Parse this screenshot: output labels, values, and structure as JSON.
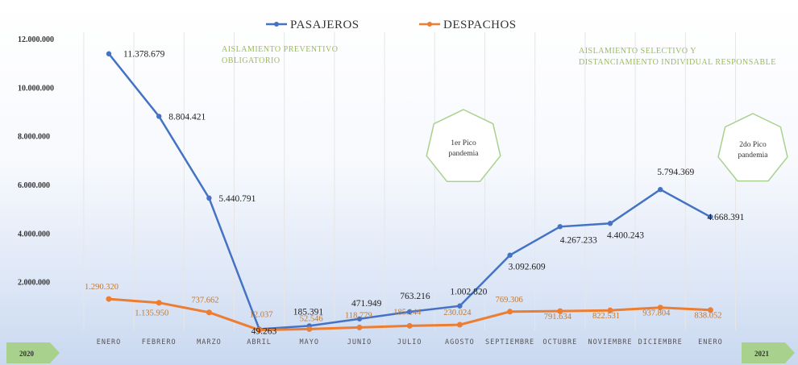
{
  "chart_data": {
    "type": "line",
    "categories": [
      "ENERO",
      "FEBRERO",
      "MARZO",
      "ABRIL",
      "MAYO",
      "JUNIO",
      "JULIO",
      "AGOSTO",
      "SEPTIEMBRE",
      "OCTUBRE",
      "NOVIEMBRE",
      "DICIEMBRE",
      "ENERO"
    ],
    "series": [
      {
        "name": "PASAJEROS",
        "color": "#4472c4",
        "values": [
          11378679,
          8804421,
          5440791,
          49263,
          185391,
          471949,
          763216,
          1002820,
          3092609,
          4267233,
          4400243,
          5794369,
          4668391
        ],
        "labels": [
          "11.378.679",
          "8.804.421",
          "5.440.791",
          "49.263",
          "185.391",
          "471.949",
          "763.216",
          "1.002.820",
          "3.092.609",
          "4.267.233",
          "4.400.243",
          "5.794.369",
          "4.668.391"
        ]
      },
      {
        "name": "DESPACHOS",
        "color": "#ed7d31",
        "values": [
          1290320,
          1135950,
          737662,
          12037,
          52546,
          118779,
          185144,
          230024,
          769306,
          791634,
          822531,
          937804,
          838052
        ],
        "labels": [
          "1.290.320",
          "1.135.950",
          "737.662",
          "12.037",
          "52.546",
          "118.779",
          "185.144",
          "230.024",
          "769.306",
          "791.634",
          "822.531",
          "937.804",
          "838.052"
        ]
      }
    ],
    "y_ticks": [
      "12.000.000",
      "10.000.000",
      "8.000.000",
      "6.000.000",
      "4.000.000",
      "2.000.000"
    ],
    "ylim": [
      0,
      12000000
    ],
    "legend_position": "top-center",
    "grid": "vertical",
    "annotations": [
      "AISLAMIENTO PREVENTIVO OBLIGATORIO",
      "AISLAMIENTO SELECTIVO Y DISTANCIAMIENTO INDIVIDUAL RESPONSABLE"
    ],
    "peaks": [
      "1er Pico pandemia",
      "2do Pico pandemia"
    ],
    "year_start": "2020",
    "year_end": "2021"
  }
}
